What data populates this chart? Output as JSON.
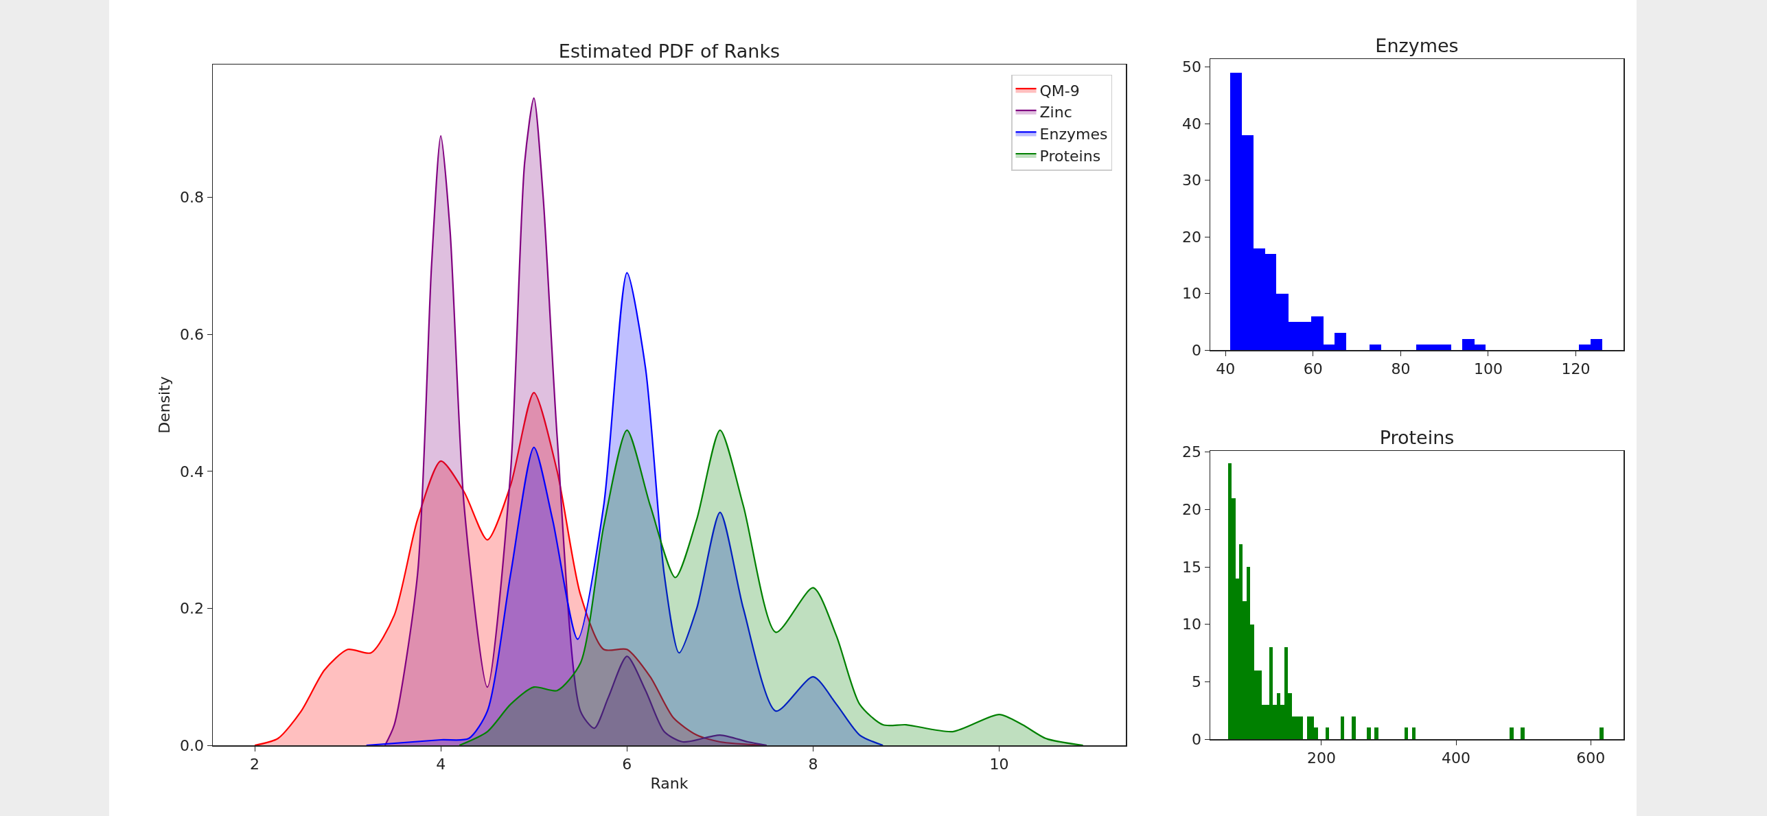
{
  "chart_data": [
    {
      "type": "area",
      "title": "Estimated PDF of Ranks",
      "xlabel": "Rank",
      "ylabel": "Density",
      "legend": "top right",
      "grid": false,
      "xlim": [
        1.55,
        11.36
      ],
      "ylim": [
        0,
        0.994
      ],
      "xticks": [
        2,
        4,
        6,
        8,
        10
      ],
      "yticks": [
        {
          "value": 0,
          "label": "0.0"
        },
        {
          "value": 0.2,
          "label": "0.2"
        },
        {
          "value": 0.4,
          "label": "0.4"
        },
        {
          "value": 0.6,
          "label": "0.6"
        },
        {
          "value": 0.8,
          "label": "0.8"
        }
      ],
      "series": [
        {
          "name": "QM-9",
          "color": "#ff0000",
          "x": [
            2.0,
            2.25,
            2.5,
            2.75,
            3.0,
            3.25,
            3.5,
            3.75,
            4.0,
            4.25,
            4.5,
            4.75,
            5.0,
            5.25,
            5.5,
            5.75,
            6.0,
            6.25,
            6.5,
            6.75,
            7.0,
            7.5
          ],
          "values": [
            0,
            0.01,
            0.05,
            0.11,
            0.14,
            0.135,
            0.19,
            0.33,
            0.415,
            0.37,
            0.3,
            0.38,
            0.515,
            0.4,
            0.22,
            0.14,
            0.14,
            0.1,
            0.04,
            0.015,
            0.005,
            0
          ]
        },
        {
          "name": "Zinc",
          "color": "#800080",
          "x": [
            3.4,
            3.5,
            3.75,
            3.9,
            4.0,
            4.1,
            4.25,
            4.5,
            4.75,
            4.9,
            5.0,
            5.1,
            5.25,
            5.5,
            5.65,
            5.8,
            6.0,
            6.2,
            6.4,
            6.6,
            7.0,
            7.3,
            7.5
          ],
          "values": [
            0,
            0.03,
            0.25,
            0.7,
            0.89,
            0.75,
            0.35,
            0.085,
            0.4,
            0.85,
            0.945,
            0.8,
            0.45,
            0.05,
            0.025,
            0.07,
            0.13,
            0.08,
            0.02,
            0.005,
            0.015,
            0.005,
            0
          ]
        },
        {
          "name": "Enzymes",
          "color": "#0000ff",
          "x": [
            3.2,
            4.0,
            4.3,
            4.5,
            4.75,
            5.0,
            5.2,
            5.47,
            5.75,
            6.0,
            6.2,
            6.4,
            6.56,
            6.75,
            7.0,
            7.25,
            7.6,
            8.0,
            8.25,
            8.5,
            8.75
          ],
          "values": [
            0,
            0.008,
            0.01,
            0.05,
            0.25,
            0.435,
            0.33,
            0.155,
            0.35,
            0.69,
            0.55,
            0.25,
            0.135,
            0.2,
            0.34,
            0.2,
            0.05,
            0.1,
            0.06,
            0.015,
            0
          ]
        },
        {
          "name": "Proteins",
          "color": "#008000",
          "x": [
            4.2,
            4.5,
            4.75,
            5.0,
            5.25,
            5.5,
            5.75,
            6.0,
            6.25,
            6.52,
            6.75,
            7.0,
            7.25,
            7.6,
            8.0,
            8.25,
            8.5,
            8.75,
            9.0,
            9.5,
            10.0,
            10.25,
            10.5,
            10.9
          ],
          "values": [
            0,
            0.02,
            0.06,
            0.085,
            0.08,
            0.12,
            0.32,
            0.46,
            0.35,
            0.245,
            0.33,
            0.46,
            0.35,
            0.165,
            0.23,
            0.16,
            0.06,
            0.03,
            0.03,
            0.02,
            0.045,
            0.03,
            0.01,
            0
          ]
        }
      ]
    },
    {
      "type": "histogram",
      "title": "Enzymes",
      "color": "#0000ff",
      "grid": false,
      "xlim": [
        36.5,
        130.9
      ],
      "ylim": [
        0,
        51.4
      ],
      "xticks": [
        40,
        60,
        80,
        100,
        120
      ],
      "yticks": [
        0,
        10,
        20,
        30,
        40,
        50
      ],
      "bins": [
        41,
        43.7,
        46.3,
        49,
        51.6,
        54.3,
        56.9,
        59.6,
        62.3,
        64.9,
        67.6,
        72.9,
        75.5,
        83.5,
        86.2,
        88.8,
        91.5,
        94.1,
        96.8,
        99.4,
        120.7,
        123.3,
        126
      ],
      "values": [
        49,
        38,
        18,
        17,
        10,
        5,
        5,
        6,
        1,
        3,
        0,
        1,
        0,
        1,
        1,
        1,
        0,
        2,
        1,
        0,
        1,
        2
      ]
    },
    {
      "type": "histogram",
      "title": "Proteins",
      "color": "#008000",
      "grid": false,
      "xlim": [
        34.9,
        648.7
      ],
      "ylim": [
        0,
        25.1
      ],
      "xticks": [
        200,
        400,
        600
      ],
      "yticks": [
        0,
        5,
        10,
        15,
        20,
        25
      ],
      "bins": [
        61.0,
        66.6,
        72.2,
        77.7,
        83.3,
        88.9,
        94.5,
        100.1,
        105.6,
        111.2,
        116.8,
        122.4,
        128.0,
        133.5,
        139.1,
        144.7,
        150.3,
        155.9,
        161.4,
        167.0,
        172.6,
        178.2,
        183.8,
        189.3,
        194.9,
        206.1,
        211.7,
        228.4,
        234.0,
        245.1,
        250.7,
        267.5,
        273.0,
        278.6,
        284.2,
        323.3,
        328.8,
        334.4,
        340.0,
        479.5,
        485.1,
        496.2,
        501.8,
        613.4,
        619.0
      ],
      "values": [
        24,
        21,
        14,
        17,
        12,
        15,
        10,
        6,
        6,
        3,
        3,
        8,
        3,
        4,
        3,
        8,
        4,
        2,
        2,
        2,
        0,
        2,
        2,
        1,
        0,
        1,
        0,
        2,
        0,
        2,
        0,
        1,
        0,
        1,
        0,
        1,
        0,
        1,
        0,
        1,
        0,
        1,
        0,
        1
      ]
    }
  ]
}
